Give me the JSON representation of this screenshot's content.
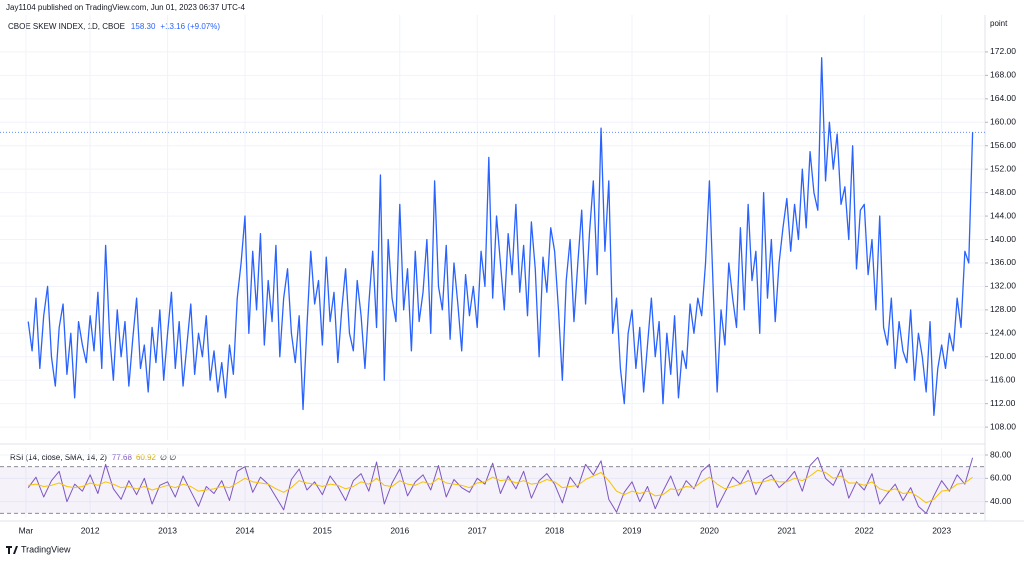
{
  "header": {
    "publisher": "Jay1104 published on TradingView.com, Jun 01, 2023 06:37 UTC-4",
    "logo": "TradingView"
  },
  "chart_data": [
    {
      "type": "line",
      "title": "CBOE SKEW INDEX, 1D, CBOE",
      "last": "158.30",
      "change": "+13.16 (+9.07%)",
      "unit": "point",
      "xlim": [
        2010.9,
        2023.56
      ],
      "xticks": [
        {
          "value": 2011.17,
          "label": "Mar"
        },
        2012,
        2013,
        2014,
        2015,
        2016,
        2017,
        2018,
        2019,
        2020,
        2021,
        2022,
        2023
      ],
      "ylim": [
        105.8,
        178.3
      ],
      "yticks": [
        {
          "value": 108,
          "label": "108.00"
        },
        {
          "value": 112,
          "label": "112.00"
        },
        {
          "value": 116,
          "label": "116.00"
        },
        {
          "value": 120,
          "label": "120.00"
        },
        {
          "value": 124,
          "label": "124.00"
        },
        {
          "value": 128,
          "label": "128.00"
        },
        {
          "value": 132,
          "label": "132.00"
        },
        {
          "value": 136,
          "label": "136.00"
        },
        {
          "value": 140,
          "label": "140.00"
        },
        {
          "value": 144,
          "label": "144.00"
        },
        {
          "value": 148,
          "label": "148.00"
        },
        {
          "value": 152,
          "label": "152.00"
        },
        {
          "value": 156,
          "label": "156.00"
        },
        {
          "value": 160,
          "label": "160.00"
        },
        {
          "value": 164,
          "label": "164.00"
        },
        {
          "value": 168,
          "label": "168.00"
        },
        {
          "value": 172,
          "label": "172.00"
        }
      ],
      "grid": true,
      "x": [
        2011.2,
        2011.25,
        2011.3,
        2011.35,
        2011.4,
        2011.45,
        2011.5,
        2011.55,
        2011.6,
        2011.65,
        2011.7,
        2011.75,
        2011.8,
        2011.85,
        2011.9,
        2011.95,
        2012,
        2012.05,
        2012.1,
        2012.15,
        2012.2,
        2012.25,
        2012.3,
        2012.35,
        2012.4,
        2012.45,
        2012.5,
        2012.55,
        2012.6,
        2012.65,
        2012.7,
        2012.75,
        2012.8,
        2012.85,
        2012.9,
        2012.95,
        2013,
        2013.05,
        2013.1,
        2013.15,
        2013.2,
        2013.25,
        2013.3,
        2013.35,
        2013.4,
        2013.45,
        2013.5,
        2013.55,
        2013.6,
        2013.65,
        2013.7,
        2013.75,
        2013.8,
        2013.85,
        2013.9,
        2013.95,
        2014,
        2014.05,
        2014.1,
        2014.15,
        2014.2,
        2014.25,
        2014.3,
        2014.35,
        2014.4,
        2014.45,
        2014.5,
        2014.55,
        2014.6,
        2014.65,
        2014.7,
        2014.75,
        2014.8,
        2014.85,
        2014.9,
        2014.95,
        2015,
        2015.05,
        2015.1,
        2015.15,
        2015.2,
        2015.25,
        2015.3,
        2015.35,
        2015.4,
        2015.45,
        2015.5,
        2015.55,
        2015.6,
        2015.65,
        2015.7,
        2015.75,
        2015.8,
        2015.85,
        2015.9,
        2015.95,
        2016,
        2016.05,
        2016.1,
        2016.15,
        2016.2,
        2016.25,
        2016.3,
        2016.35,
        2016.4,
        2016.45,
        2016.5,
        2016.55,
        2016.6,
        2016.65,
        2016.7,
        2016.75,
        2016.8,
        2016.85,
        2016.9,
        2016.95,
        2017,
        2017.05,
        2017.1,
        2017.15,
        2017.2,
        2017.25,
        2017.3,
        2017.35,
        2017.4,
        2017.45,
        2017.5,
        2017.55,
        2017.6,
        2017.65,
        2017.7,
        2017.75,
        2017.8,
        2017.85,
        2017.9,
        2017.95,
        2018,
        2018.05,
        2018.1,
        2018.15,
        2018.2,
        2018.25,
        2018.3,
        2018.35,
        2018.4,
        2018.45,
        2018.5,
        2018.55,
        2018.6,
        2018.65,
        2018.7,
        2018.75,
        2018.8,
        2018.85,
        2018.9,
        2018.95,
        2019,
        2019.05,
        2019.1,
        2019.15,
        2019.2,
        2019.25,
        2019.3,
        2019.35,
        2019.4,
        2019.45,
        2019.5,
        2019.55,
        2019.6,
        2019.65,
        2019.7,
        2019.75,
        2019.8,
        2019.85,
        2019.9,
        2019.95,
        2020,
        2020.05,
        2020.1,
        2020.15,
        2020.2,
        2020.25,
        2020.3,
        2020.35,
        2020.4,
        2020.45,
        2020.5,
        2020.55,
        2020.6,
        2020.65,
        2020.7,
        2020.75,
        2020.8,
        2020.85,
        2020.9,
        2020.95,
        2021,
        2021.05,
        2021.1,
        2021.15,
        2021.2,
        2021.25,
        2021.3,
        2021.35,
        2021.4,
        2021.45,
        2021.5,
        2021.55,
        2021.6,
        2021.65,
        2021.7,
        2021.75,
        2021.8,
        2021.85,
        2021.9,
        2021.95,
        2022,
        2022.05,
        2022.1,
        2022.15,
        2022.2,
        2022.25,
        2022.3,
        2022.35,
        2022.4,
        2022.45,
        2022.5,
        2022.55,
        2022.6,
        2022.65,
        2022.7,
        2022.75,
        2022.8,
        2022.85,
        2022.9,
        2022.95,
        2023,
        2023.05,
        2023.1,
        2023.15,
        2023.2,
        2023.25,
        2023.3,
        2023.35,
        2023.4
      ],
      "series": [
        {
          "name": "CBOE SKEW INDEX",
          "color": "#2962ff",
          "values": [
            126,
            121,
            130,
            118,
            127,
            132,
            120,
            115,
            125,
            129,
            117,
            124,
            113,
            126,
            122,
            119,
            127,
            121,
            131,
            118,
            139,
            124,
            116,
            128,
            120,
            126,
            115,
            123,
            130,
            118,
            122,
            114,
            125,
            119,
            128,
            116,
            124,
            131,
            118,
            126,
            115,
            122,
            129,
            117,
            124,
            120,
            127,
            116,
            121,
            114,
            119,
            113,
            122,
            117,
            130,
            136,
            144,
            124,
            138,
            128,
            141,
            122,
            133,
            126,
            139,
            120,
            130,
            135,
            124,
            119,
            127,
            111,
            125,
            138,
            129,
            133,
            122,
            137,
            126,
            131,
            119,
            128,
            135,
            124,
            121,
            133,
            127,
            118,
            129,
            138,
            125,
            151,
            116,
            140,
            130,
            126,
            146,
            128,
            135,
            121,
            138,
            126,
            131,
            140,
            124,
            150,
            132,
            128,
            139,
            123,
            136,
            129,
            121,
            134,
            127,
            132,
            125,
            138,
            132,
            154,
            130,
            144,
            136,
            128,
            141,
            134,
            146,
            131,
            139,
            127,
            143,
            135,
            120,
            137,
            131,
            142,
            138,
            128,
            116,
            133,
            140,
            126,
            136,
            145,
            129,
            141,
            150,
            134,
            159,
            138,
            150,
            124,
            130,
            118,
            112,
            124,
            128,
            118,
            125,
            114,
            122,
            130,
            120,
            126,
            112,
            124,
            117,
            127,
            113,
            121,
            118,
            129,
            124,
            130,
            127,
            136,
            150,
            131,
            114,
            128,
            122,
            136,
            130,
            125,
            142,
            128,
            146,
            133,
            138,
            124,
            148,
            130,
            140,
            126,
            136,
            142,
            147,
            138,
            146,
            140,
            152,
            142,
            155,
            148,
            145,
            171,
            150,
            160,
            152,
            158,
            146,
            149,
            140,
            156,
            135,
            145,
            146,
            134,
            140,
            128,
            144,
            125,
            122,
            130,
            118,
            126,
            121,
            119,
            128,
            116,
            124,
            120,
            114,
            126,
            110,
            118,
            122,
            118,
            124,
            121,
            130,
            125,
            138,
            136,
            158.3
          ]
        }
      ]
    },
    {
      "type": "line",
      "title": "RSI (14, close, SMA, 14, 2)",
      "nulls": "∅ ∅",
      "ylim": [
        26,
        86
      ],
      "yticks": [
        {
          "value": 40,
          "label": "40.00"
        },
        {
          "value": 60,
          "label": "60.00"
        },
        {
          "value": 80,
          "label": "80.00"
        }
      ],
      "bands": [
        30,
        70
      ],
      "band_color": "#7e57c2",
      "x": [
        2011.2,
        2011.3,
        2011.4,
        2011.5,
        2011.6,
        2011.7,
        2011.8,
        2011.9,
        2012,
        2012.1,
        2012.2,
        2012.3,
        2012.4,
        2012.5,
        2012.6,
        2012.7,
        2012.8,
        2012.9,
        2013,
        2013.1,
        2013.2,
        2013.3,
        2013.4,
        2013.5,
        2013.6,
        2013.7,
        2013.8,
        2013.9,
        2014,
        2014.1,
        2014.2,
        2014.3,
        2014.4,
        2014.5,
        2014.6,
        2014.7,
        2014.8,
        2014.9,
        2015,
        2015.1,
        2015.2,
        2015.3,
        2015.4,
        2015.5,
        2015.6,
        2015.7,
        2015.8,
        2015.9,
        2016,
        2016.1,
        2016.2,
        2016.3,
        2016.4,
        2016.5,
        2016.6,
        2016.7,
        2016.8,
        2016.9,
        2017,
        2017.1,
        2017.2,
        2017.3,
        2017.4,
        2017.5,
        2017.6,
        2017.7,
        2017.8,
        2017.9,
        2018,
        2018.1,
        2018.2,
        2018.3,
        2018.4,
        2018.5,
        2018.6,
        2018.7,
        2018.8,
        2018.9,
        2019,
        2019.1,
        2019.2,
        2019.3,
        2019.4,
        2019.5,
        2019.6,
        2019.7,
        2019.8,
        2019.9,
        2020,
        2020.1,
        2020.2,
        2020.3,
        2020.4,
        2020.5,
        2020.6,
        2020.7,
        2020.8,
        2020.9,
        2021,
        2021.1,
        2021.2,
        2021.3,
        2021.4,
        2021.5,
        2021.6,
        2021.7,
        2021.8,
        2021.9,
        2022,
        2022.1,
        2022.2,
        2022.3,
        2022.4,
        2022.5,
        2022.6,
        2022.7,
        2022.8,
        2022.9,
        2023,
        2023.1,
        2023.2,
        2023.3,
        2023.4
      ],
      "series": [
        {
          "name": "RSI",
          "color": "#7e57c2",
          "last": "77.68",
          "values": [
            52,
            61,
            44,
            58,
            66,
            40,
            55,
            49,
            63,
            47,
            72,
            51,
            42,
            58,
            46,
            60,
            38,
            54,
            57,
            44,
            62,
            49,
            36,
            53,
            47,
            58,
            41,
            66,
            70,
            48,
            61,
            55,
            44,
            33,
            59,
            68,
            50,
            57,
            46,
            62,
            53,
            41,
            58,
            64,
            49,
            74,
            38,
            56,
            68,
            45,
            57,
            63,
            50,
            71,
            44,
            59,
            52,
            48,
            60,
            55,
            73,
            47,
            62,
            51,
            66,
            43,
            58,
            64,
            55,
            39,
            61,
            52,
            72,
            63,
            75,
            42,
            31,
            48,
            57,
            40,
            53,
            34,
            49,
            62,
            45,
            58,
            51,
            66,
            72,
            35,
            48,
            61,
            55,
            67,
            46,
            59,
            63,
            52,
            58,
            66,
            49,
            71,
            78,
            60,
            54,
            68,
            43,
            57,
            50,
            64,
            38,
            47,
            55,
            41,
            52,
            36,
            30,
            45,
            58,
            49,
            63,
            55,
            77.68
          ]
        },
        {
          "name": "SMA",
          "color": "#f9c300",
          "last": "60.92",
          "values": [
            54,
            55,
            53,
            54,
            56,
            53,
            52,
            53,
            56,
            54,
            57,
            55,
            52,
            53,
            51,
            53,
            50,
            52,
            54,
            52,
            55,
            53,
            49,
            50,
            51,
            53,
            52,
            56,
            60,
            57,
            56,
            55,
            51,
            48,
            52,
            58,
            56,
            55,
            53,
            55,
            54,
            51,
            53,
            57,
            55,
            60,
            54,
            53,
            58,
            55,
            54,
            57,
            55,
            60,
            56,
            55,
            54,
            52,
            56,
            57,
            61,
            58,
            59,
            56,
            58,
            55,
            56,
            59,
            57,
            52,
            53,
            54,
            59,
            62,
            65,
            58,
            49,
            46,
            49,
            47,
            49,
            45,
            46,
            51,
            50,
            53,
            52,
            57,
            61,
            55,
            51,
            53,
            55,
            58,
            56,
            57,
            59,
            57,
            57,
            60,
            58,
            62,
            67,
            65,
            60,
            62,
            56,
            56,
            54,
            57,
            51,
            49,
            51,
            47,
            48,
            44,
            39,
            42,
            49,
            50,
            55,
            56,
            60.92
          ]
        }
      ]
    }
  ]
}
